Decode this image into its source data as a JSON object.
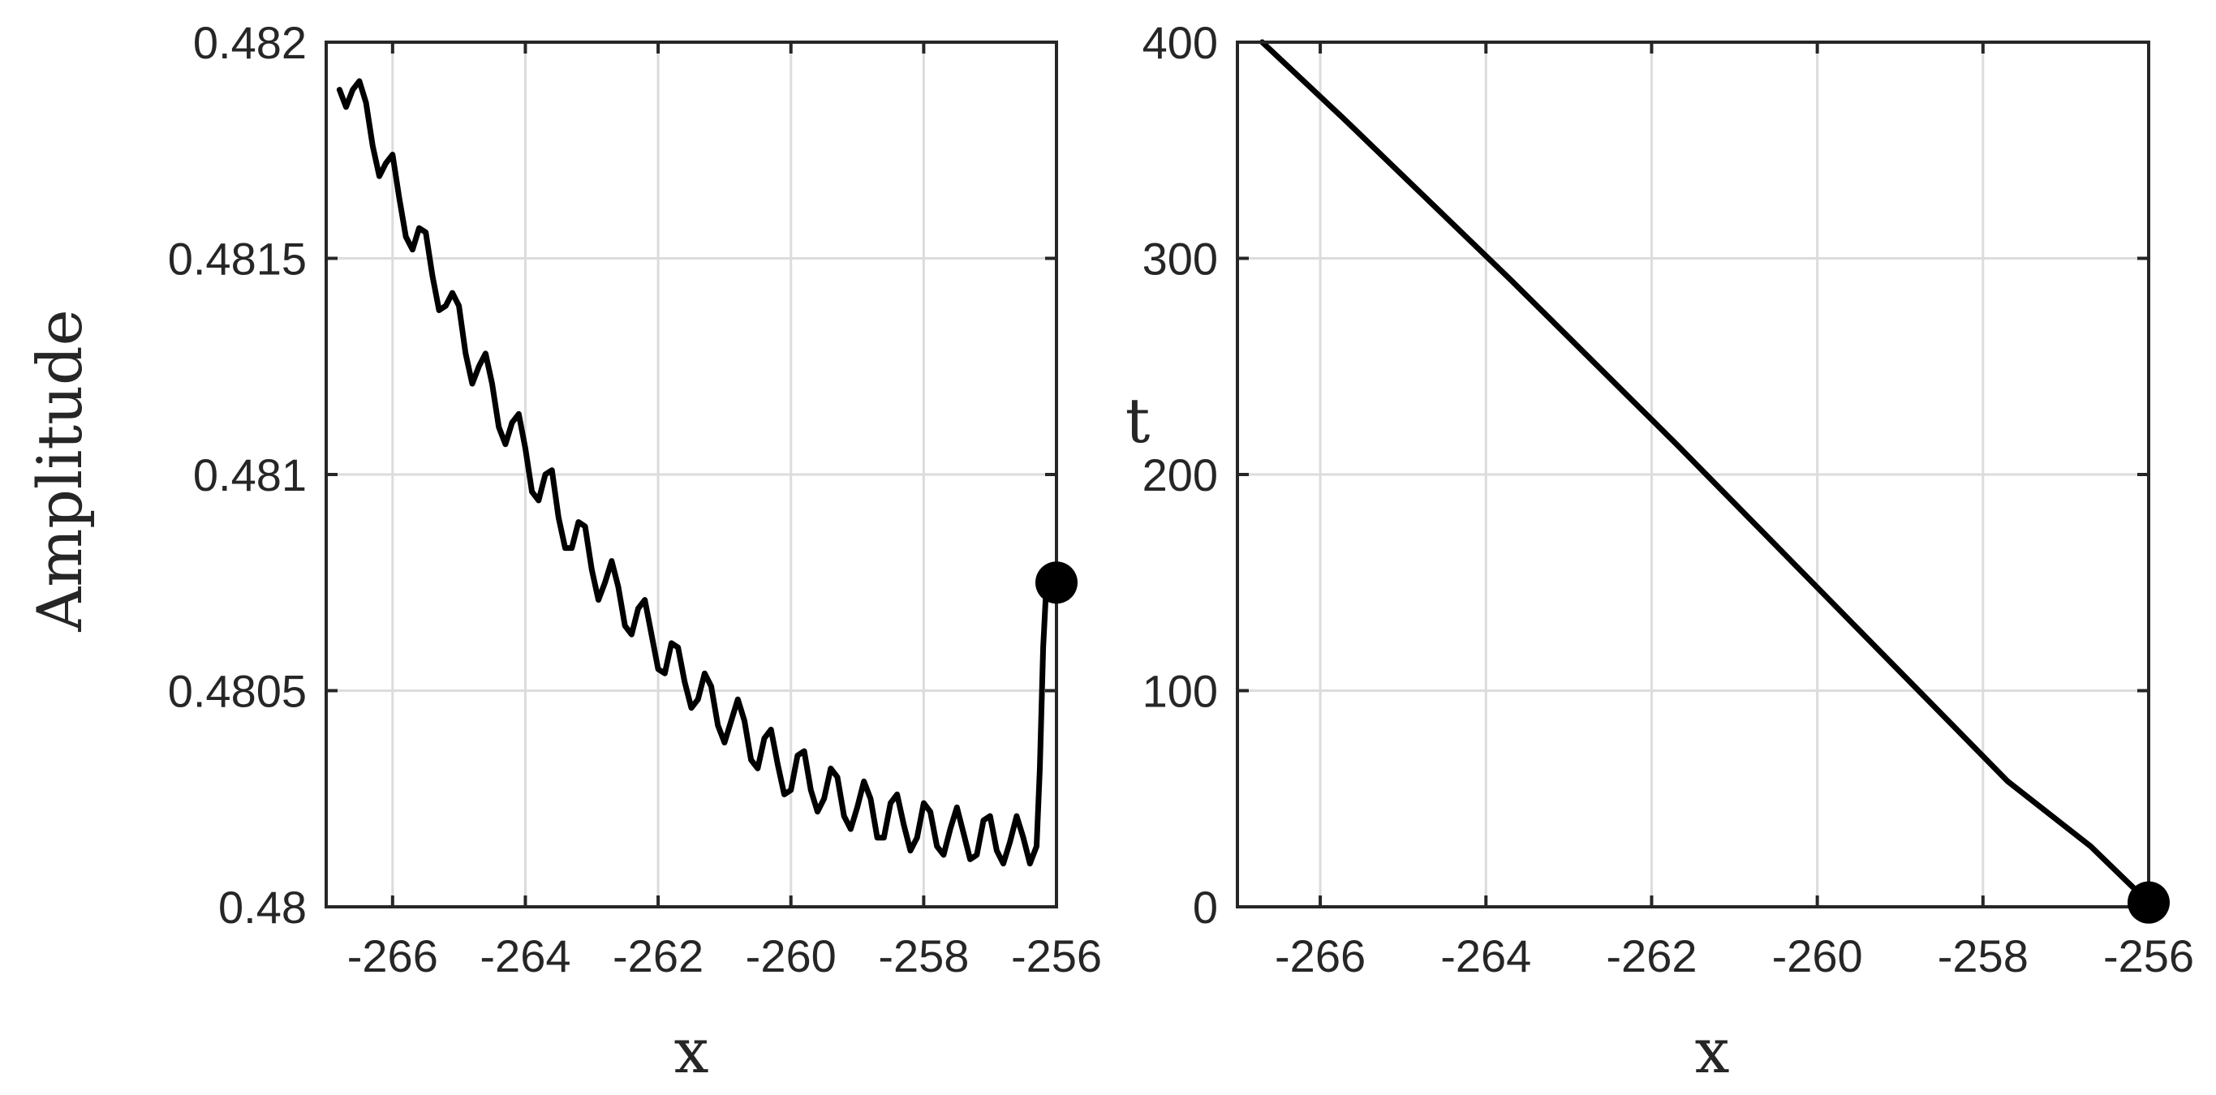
{
  "chart_data": [
    {
      "type": "line",
      "title": "",
      "xlabel": "x",
      "ylabel": "Amplitude",
      "xlim": [
        -267.0,
        -256.0
      ],
      "ylim": [
        0.48,
        0.482
      ],
      "xticks": [
        -266,
        -264,
        -262,
        -260,
        -258,
        -256
      ],
      "xtick_labels": [
        "-266",
        "-264",
        "-262",
        "-260",
        "-258",
        "-256"
      ],
      "yticks": [
        0.48,
        0.4805,
        0.481,
        0.4815,
        0.482
      ],
      "ytick_labels": [
        "0.48",
        "0.4805",
        "0.481",
        "0.4815",
        "0.482"
      ],
      "grid": true,
      "line_color": "#000000",
      "series": [
        {
          "x": [
            -266.8,
            -266.7,
            -266.6,
            -266.5,
            -266.4,
            -266.3,
            -266.2,
            -266.1,
            -266.0,
            -265.9,
            -265.8,
            -265.7,
            -265.6,
            -265.5,
            -265.4,
            -265.3,
            -265.2,
            -265.1,
            -265.0,
            -264.9,
            -264.8,
            -264.7,
            -264.6,
            -264.5,
            -264.4,
            -264.3,
            -264.2,
            -264.1,
            -264.0,
            -263.9,
            -263.8,
            -263.7,
            -263.6,
            -263.5,
            -263.4,
            -263.3,
            -263.2,
            -263.1,
            -263.0,
            -262.9,
            -262.8,
            -262.7,
            -262.6,
            -262.5,
            -262.4,
            -262.3,
            -262.2,
            -262.1,
            -262.0,
            -261.9,
            -261.8,
            -261.7,
            -261.6,
            -261.5,
            -261.4,
            -261.3,
            -261.2,
            -261.1,
            -261.0,
            -260.9,
            -260.8,
            -260.7,
            -260.6,
            -260.5,
            -260.4,
            -260.3,
            -260.2,
            -260.1,
            -260.0,
            -259.9,
            -259.8,
            -259.7,
            -259.6,
            -259.5,
            -259.4,
            -259.3,
            -259.2,
            -259.1,
            -259.0,
            -258.9,
            -258.8,
            -258.7,
            -258.6,
            -258.5,
            -258.4,
            -258.3,
            -258.2,
            -258.1,
            -258.0,
            -257.9,
            -257.8,
            -257.7,
            -257.6,
            -257.5,
            -257.4,
            -257.3,
            -257.2,
            -257.1,
            -257.0,
            -256.9,
            -256.8,
            -256.7,
            -256.6,
            -256.5,
            -256.4,
            -256.3,
            -256.25,
            -256.2,
            -256.15
          ],
          "y": [
            0.48189,
            0.48185,
            0.48189,
            0.48191,
            0.48186,
            0.48176,
            0.48169,
            0.48172,
            0.48174,
            0.48164,
            0.48155,
            0.48152,
            0.48157,
            0.48156,
            0.48146,
            0.48138,
            0.48139,
            0.48142,
            0.48139,
            0.48128,
            0.48121,
            0.48125,
            0.48128,
            0.48121,
            0.48111,
            0.48107,
            0.48112,
            0.48114,
            0.48106,
            0.48096,
            0.48094,
            0.481,
            0.48101,
            0.4809,
            0.48083,
            0.48083,
            0.48089,
            0.48088,
            0.48078,
            0.48071,
            0.48075,
            0.4808,
            0.48074,
            0.48065,
            0.48063,
            0.48069,
            0.48071,
            0.48063,
            0.48055,
            0.48054,
            0.48061,
            0.4806,
            0.48052,
            0.48046,
            0.48048,
            0.48054,
            0.48051,
            0.48042,
            0.48038,
            0.48043,
            0.48048,
            0.48043,
            0.48034,
            0.48032,
            0.48039,
            0.48041,
            0.48033,
            0.48026,
            0.48027,
            0.48035,
            0.48036,
            0.48027,
            0.48022,
            0.48025,
            0.48032,
            0.4803,
            0.48021,
            0.48018,
            0.48023,
            0.48029,
            0.48025,
            0.48016,
            0.48016,
            0.48024,
            0.48026,
            0.48019,
            0.48013,
            0.48016,
            0.48024,
            0.48022,
            0.48014,
            0.48012,
            0.48018,
            0.48023,
            0.48017,
            0.48011,
            0.48012,
            0.4802,
            0.48021,
            0.48013,
            0.4801,
            0.48015,
            0.48021,
            0.48016,
            0.4801,
            0.48014,
            0.48032,
            0.4806,
            0.48075
          ]
        }
      ],
      "endpoint_marker": {
        "x": -256.0,
        "y": 0.48075
      }
    },
    {
      "type": "line",
      "title": "",
      "xlabel": "x",
      "ylabel": "t",
      "xlim": [
        -267.0,
        -256.0
      ],
      "ylim": [
        0,
        400
      ],
      "xticks": [
        -266,
        -264,
        -262,
        -260,
        -258,
        -256
      ],
      "xtick_labels": [
        "-266",
        "-264",
        "-262",
        "-260",
        "-258",
        "-256"
      ],
      "yticks": [
        0,
        100,
        200,
        300,
        400
      ],
      "ytick_labels": [
        "0",
        "100",
        "200",
        "300",
        "400"
      ],
      "grid": true,
      "line_color": "#000000",
      "series": [
        {
          "x": [
            -266.7,
            -265.7,
            -264.7,
            -263.7,
            -262.7,
            -261.7,
            -260.7,
            -259.7,
            -258.7,
            -257.7,
            -256.7,
            -256.0
          ],
          "y": [
            400,
            364,
            327,
            290,
            252,
            214,
            175,
            136,
            97,
            58,
            28,
            2
          ]
        }
      ],
      "endpoint_marker": {
        "x": -256.0,
        "y": 2
      }
    }
  ]
}
